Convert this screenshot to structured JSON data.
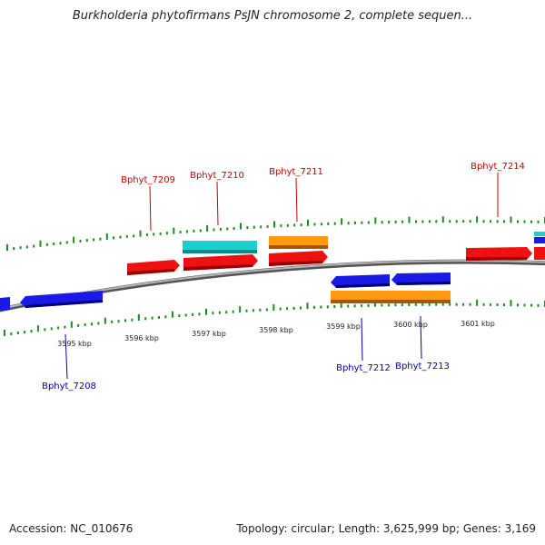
{
  "title": "Burkholderia phytofirmans PsJN chromosome 2, complete sequen...",
  "footer": {
    "accession": "Accession: NC_010676",
    "summary": "Topology: circular; Length: 3,625,999 bp; Genes: 3,169"
  },
  "colors": {
    "backbone": "#8a8a8a",
    "tick": "#1f8a1f",
    "label_top": "#cc0000",
    "label_bottom": "#0000aa",
    "red_gene": "#ee1111",
    "blue_gene": "#1a1ae6",
    "cyan_gene": "#22cccc",
    "orange_gene": "#ff9911"
  },
  "axis": {
    "unit": "kbp",
    "ticks": [
      "3595 kbp",
      "3596 kbp",
      "3597 kbp",
      "3598 kbp",
      "3599 kbp",
      "3600 kbp",
      "3601 kbp"
    ]
  },
  "gene_labels": {
    "top": [
      "Bphyt_7209",
      "Bphyt_7210",
      "Bphyt_7211",
      "Bphyt_7214"
    ],
    "bottom": [
      "Bphyt_7208",
      "Bphyt_7212",
      "Bphyt_7213"
    ]
  }
}
